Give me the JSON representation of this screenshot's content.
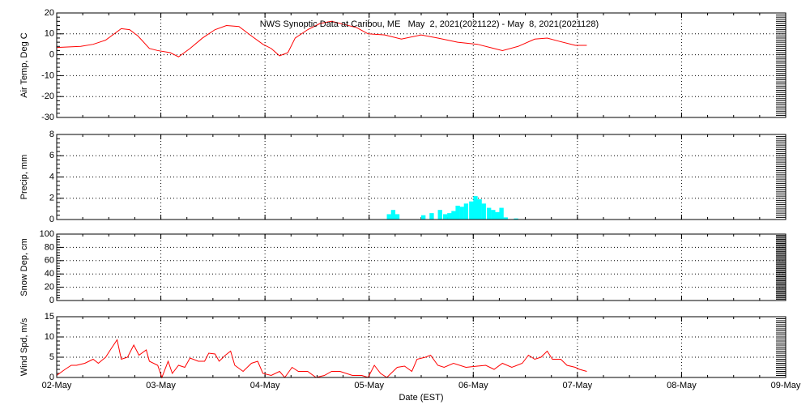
{
  "chart_data": [
    {
      "type": "line",
      "title": "NWS Synoptic Data at Caribou, ME   May  2, 2021(2021122) - May  8, 2021(2021128)",
      "ylabel": "Air Temp, Deg C",
      "color": "#ff0000",
      "grid": true,
      "xlim": [
        0,
        7
      ],
      "xticks": [
        0,
        1,
        2,
        3,
        4,
        5,
        6,
        7
      ],
      "ylim": [
        -30,
        20
      ],
      "yticks": [
        -30,
        -20,
        -10,
        0,
        10,
        20
      ],
      "x": [
        0,
        0.23,
        0.35,
        0.47,
        0.62,
        0.7,
        0.78,
        0.89,
        0.97,
        1.09,
        1.17,
        1.28,
        1.4,
        1.52,
        1.63,
        1.75,
        1.87,
        1.98,
        2.06,
        2.14,
        2.22,
        2.29,
        2.41,
        2.53,
        2.64,
        2.76,
        2.88,
        2.99,
        3.15,
        3.31,
        3.5,
        3.66,
        3.85,
        4.04,
        4.2,
        4.28,
        4.43,
        4.59,
        4.71,
        4.82,
        4.98,
        5.09
      ],
      "values": [
        3.5,
        4,
        5,
        7,
        12.5,
        12,
        9,
        3,
        2,
        1,
        -1,
        3,
        8,
        12,
        14,
        13.5,
        9,
        5,
        3,
        -0.5,
        1,
        8,
        12,
        15,
        16,
        14.5,
        13,
        10,
        9.5,
        7.5,
        9.5,
        8,
        6,
        5,
        3,
        2,
        4,
        7.5,
        8,
        6.5,
        4.5,
        4.5
      ]
    },
    {
      "type": "bar",
      "ylabel": "Precip, mm",
      "color": "#00ffff",
      "grid": true,
      "xlim": [
        0,
        7
      ],
      "xticks": [
        0,
        1,
        2,
        3,
        4,
        5,
        6,
        7
      ],
      "ylim": [
        0,
        8
      ],
      "yticks": [
        0,
        2,
        4,
        6,
        8
      ],
      "x": [
        3.17,
        3.21,
        3.25,
        3.5,
        3.58,
        3.66,
        3.71,
        3.75,
        3.79,
        3.83,
        3.87,
        3.91,
        3.96,
        4.0,
        4.04,
        4.08,
        4.13,
        4.17,
        4.21,
        4.25,
        4.29,
        4.39
      ],
      "values": [
        0.5,
        0.9,
        0.5,
        0.4,
        0.6,
        0.9,
        0.5,
        0.6,
        0.8,
        1.3,
        1.2,
        1.5,
        1.7,
        2.2,
        1.9,
        1.5,
        1.1,
        0.9,
        0.7,
        1.1,
        0.2,
        0.1
      ]
    },
    {
      "type": "line",
      "ylabel": "Snow Dep, cm",
      "color": "#ff0000",
      "grid": true,
      "xlim": [
        0,
        7
      ],
      "xticks": [
        0,
        1,
        2,
        3,
        4,
        5,
        6,
        7
      ],
      "ylim": [
        0,
        100
      ],
      "yticks": [
        0,
        20,
        40,
        60,
        80,
        100
      ],
      "x": [],
      "values": []
    },
    {
      "type": "line",
      "ylabel": "Wind Spd, m/s",
      "xlabel": "Date (EST)",
      "color": "#ff0000",
      "grid": true,
      "xlim": [
        0,
        7
      ],
      "xticks": [
        {
          "value": 0,
          "label": "02-May"
        },
        {
          "value": 1,
          "label": "03-May"
        },
        {
          "value": 2,
          "label": "04-May"
        },
        {
          "value": 3,
          "label": "05-May"
        },
        {
          "value": 4,
          "label": "06-May"
        },
        {
          "value": 5,
          "label": "07-May"
        },
        {
          "value": 6,
          "label": "08-May"
        },
        {
          "value": 7,
          "label": "09-May"
        }
      ],
      "ylim": [
        0,
        15
      ],
      "yticks": [
        0,
        5,
        10,
        15
      ],
      "x": [
        0,
        0.08,
        0.14,
        0.19,
        0.27,
        0.35,
        0.4,
        0.47,
        0.52,
        0.58,
        0.62,
        0.68,
        0.74,
        0.79,
        0.86,
        0.89,
        0.97,
        1.01,
        1.07,
        1.11,
        1.17,
        1.23,
        1.28,
        1.36,
        1.42,
        1.46,
        1.52,
        1.56,
        1.62,
        1.67,
        1.71,
        1.79,
        1.87,
        1.93,
        1.98,
        2.06,
        2.14,
        2.19,
        2.26,
        2.32,
        2.41,
        2.49,
        2.57,
        2.64,
        2.72,
        2.84,
        2.93,
        2.99,
        3.05,
        3.11,
        3.17,
        3.27,
        3.34,
        3.41,
        3.46,
        3.54,
        3.59,
        3.66,
        3.72,
        3.81,
        3.93,
        4.04,
        4.12,
        4.2,
        4.28,
        4.37,
        4.47,
        4.53,
        4.59,
        4.65,
        4.71,
        4.76,
        4.84,
        4.9,
        4.98,
        5.02,
        5.09
      ],
      "values": [
        0.5,
        2,
        3,
        3,
        3.5,
        4.5,
        3.5,
        5,
        7,
        9.3,
        4.5,
        5,
        8,
        5.5,
        6.8,
        4,
        3,
        0,
        4,
        1,
        3,
        2.5,
        4.8,
        4,
        4,
        6,
        5.8,
        4,
        5.5,
        6.5,
        3,
        1.5,
        3.5,
        4,
        1,
        0.5,
        1.5,
        0,
        2.5,
        1.5,
        1.5,
        0,
        0.5,
        1.5,
        1.5,
        0.5,
        0.5,
        0,
        3,
        1,
        0,
        2.5,
        2.8,
        1.5,
        4.5,
        5,
        5.5,
        3,
        2.5,
        3.5,
        2.5,
        2.8,
        3,
        2,
        3.5,
        2.5,
        3.5,
        5.5,
        4.5,
        5,
        6.5,
        4.5,
        4.5,
        3,
        2.5,
        2,
        1.5
      ]
    }
  ]
}
